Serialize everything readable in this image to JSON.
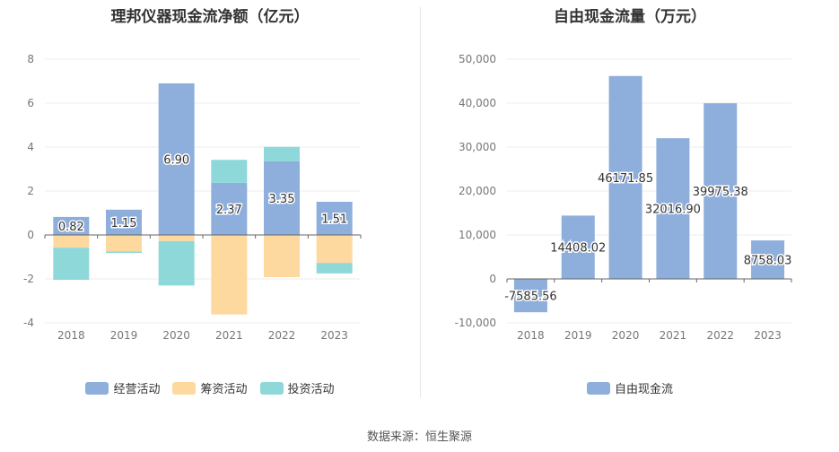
{
  "source": "数据来源：恒生聚源",
  "chart_data": [
    {
      "type": "bar",
      "stacked": true,
      "title": "理邦仪器现金流净额（亿元）",
      "categories": [
        "2018",
        "2019",
        "2020",
        "2021",
        "2022",
        "2023"
      ],
      "ylim": [
        -4,
        8
      ],
      "yticks": [
        -4,
        -2,
        0,
        2,
        4,
        6,
        8
      ],
      "grid": true,
      "legend_position": "bottom",
      "series": [
        {
          "name": "经营活动",
          "color": "#8eaedc",
          "values": [
            0.82,
            1.15,
            6.9,
            2.37,
            3.35,
            1.51
          ],
          "labels": [
            "0.82",
            "1.15",
            "6.90",
            "2.37",
            "3.35",
            "1.51"
          ]
        },
        {
          "name": "筹资活动",
          "color": "#fdd9a0",
          "values": [
            -0.58,
            -0.75,
            -0.28,
            -3.62,
            -1.92,
            -1.27
          ]
        },
        {
          "name": "投资活动",
          "color": "#8fd8da",
          "values": [
            -1.46,
            -0.07,
            -2.02,
            1.05,
            0.66,
            -0.48
          ]
        }
      ]
    },
    {
      "type": "bar",
      "title": "自由现金流量（万元）",
      "categories": [
        "2018",
        "2019",
        "2020",
        "2021",
        "2022",
        "2023"
      ],
      "ylim": [
        -10000,
        50000
      ],
      "yticks": [
        -10000,
        0,
        10000,
        20000,
        30000,
        40000,
        50000
      ],
      "ytick_labels": [
        "-10,000",
        "0",
        "10,000",
        "20,000",
        "30,000",
        "40,000",
        "50,000"
      ],
      "grid": true,
      "legend_position": "bottom",
      "series": [
        {
          "name": "自由现金流",
          "color": "#8eaedc",
          "values": [
            -7585.56,
            14408.02,
            46171.85,
            32016.9,
            39975.38,
            8758.03
          ],
          "labels": [
            "-7585.56",
            "14408.02",
            "46171.85",
            "32016.90",
            "39975.38",
            "8758.03"
          ]
        }
      ]
    }
  ]
}
